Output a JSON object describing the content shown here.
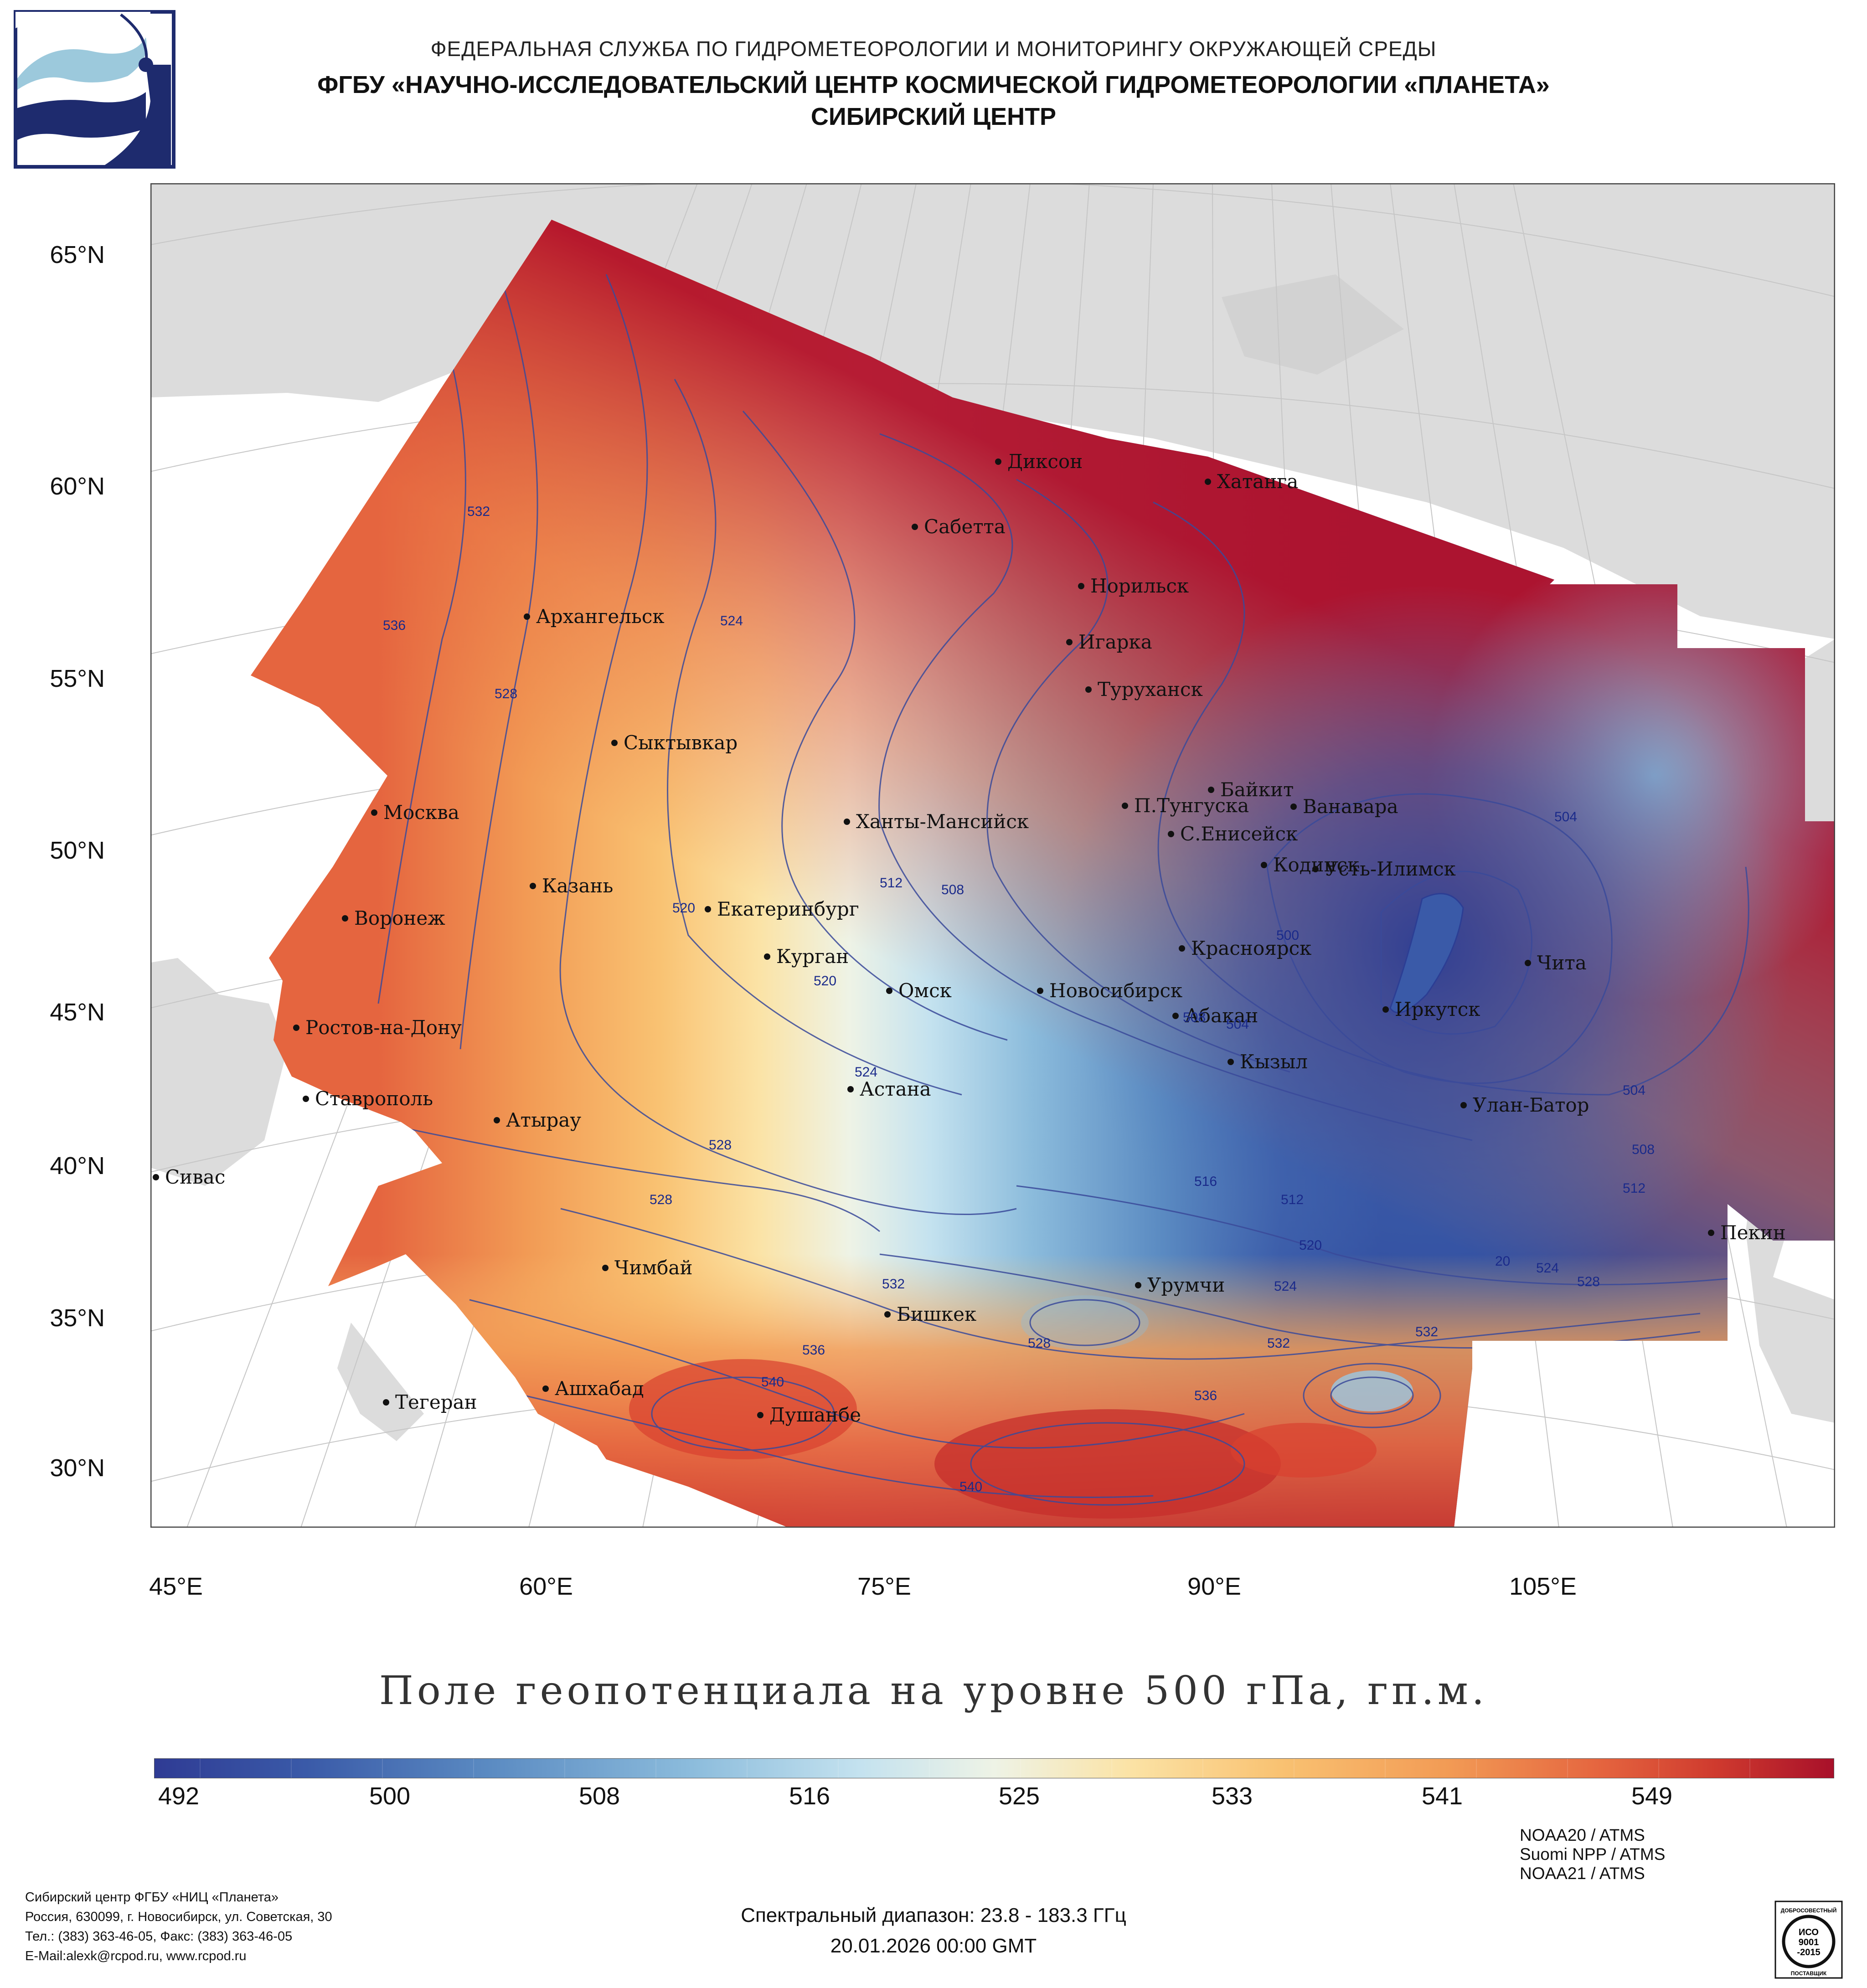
{
  "header": {
    "line1": "ФЕДЕРАЛЬНАЯ СЛУЖБА ПО ГИДРОМЕТЕОРОЛОГИИ И МОНИТОРИНГУ ОКРУЖАЮЩЕЙ СРЕДЫ",
    "line2": "ФГБУ «НАУЧНО-ИССЛЕДОВАТЕЛЬСКИЙ ЦЕНТР КОСМИЧЕСКОЙ ГИДРОМЕТЕОРОЛОГИИ «ПЛАНЕТА»",
    "line3": "СИБИРСКИЙ ЦЕНТР"
  },
  "map": {
    "latitude_labels": [
      "65°N",
      "60°N",
      "55°N",
      "50°N",
      "45°N",
      "40°N",
      "35°N",
      "30°N"
    ],
    "longitude_labels": [
      "45°E",
      "60°E",
      "75°E",
      "90°E",
      "105°E"
    ],
    "cities": [
      "Диксон",
      "Хатанга",
      "Сабетта",
      "Норильск",
      "Игарка",
      "Архангельск",
      "Туруханск",
      "Сыктывкар",
      "Байкит",
      "Москва",
      "П.Тунгуска",
      "Ванавара",
      "Ханты-Мансийск",
      "С.Енисейск",
      "Казань",
      "Кодинск",
      "Усть-Илимск",
      "Воронеж",
      "Екатеринбург",
      "Красноярск",
      "Курган",
      "Чита",
      "Омск",
      "Новосибирск",
      "Иркутск",
      "Абакан",
      "Ростов-на-Дону",
      "Кызыл",
      "Астана",
      "Ставрополь",
      "Улан-Батор",
      "Атырау",
      "Сивас",
      "Пекин",
      "Чимбай",
      "Урумчи",
      "Бишкек",
      "Ашхабад",
      "Тегеран",
      "Душанбе"
    ],
    "contour_labels": [
      "532",
      "536",
      "528",
      "524",
      "520",
      "512",
      "508",
      "520",
      "524",
      "504",
      "500",
      "504",
      "508",
      "516",
      "512",
      "520",
      "524",
      "532",
      "536",
      "540",
      "536",
      "532",
      "528",
      "536",
      "532",
      "540",
      "504",
      "508",
      "512",
      "20",
      "524",
      "528",
      "532",
      "528",
      "528",
      "528"
    ],
    "palette": {
      "low": "#2c3e94",
      "mid_low": "#8cc3e0",
      "mid": "#eef3e8",
      "mid_high": "#f9c879",
      "high": "#b30f26",
      "land": "#dcdcdc",
      "contour": "#3a4a9a"
    }
  },
  "title": "Поле геопотенциала на уровне 500 гПа, гп.м.",
  "colorbar": {
    "ticks": [
      "492",
      "500",
      "508",
      "516",
      "525",
      "533",
      "541",
      "549"
    ],
    "range": [
      488,
      553
    ],
    "colors": [
      "#2f3b94",
      "#3a5aa8",
      "#5b8bc2",
      "#8cbcdc",
      "#c4e2ef",
      "#eef3e6",
      "#fbe3a6",
      "#f9c272",
      "#f29b55",
      "#e5653f",
      "#cf3a2e",
      "#a8102a"
    ]
  },
  "footer": {
    "address": [
      "Сибирский центр ФГБУ «НИЦ «Планета»",
      "Россия, 630099, г. Новосибирск, ул. Советская, 30",
      "Тел.: (383) 363-46-05, Факс: (383) 363-46-05",
      "E-Mail:alexk@rcpod.ru, www.rcpod.ru"
    ],
    "sensors": [
      "NOAA20 / ATMS",
      "Suomi NPP / ATMS",
      "NOAA21 / ATMS"
    ],
    "spectral_range": "Спектральный диапазон: 23.8 - 183.3 ГГц",
    "datetime": "20.01.2026 00:00 GMT",
    "iso_badge": {
      "top": "ДОБРОСОВЕСТНЫЙ",
      "middle1": "ИСО",
      "middle2": "9001",
      "middle3": "-2015",
      "bottom": "ПОСТАВЩИК"
    }
  }
}
